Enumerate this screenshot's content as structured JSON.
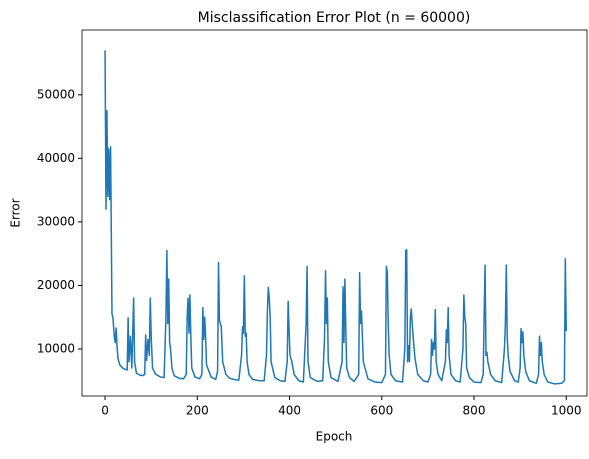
{
  "chart_data": {
    "type": "line",
    "title": "Misclassification Error Plot (n = 60000)",
    "xlabel": "Epoch",
    "ylabel": "Error",
    "color": "#1f77b4",
    "x": [
      0,
      2,
      4,
      6,
      8,
      10,
      12,
      15,
      17,
      20,
      22,
      24,
      26,
      28,
      32,
      38,
      44,
      48,
      50,
      52,
      55,
      58,
      62,
      64,
      68,
      75,
      82,
      86,
      88,
      90,
      93,
      96,
      98,
      100,
      103,
      110,
      120,
      128,
      132,
      134,
      136,
      138,
      140,
      142,
      145,
      150,
      160,
      170,
      176,
      178,
      180,
      182,
      184,
      186,
      188,
      195,
      205,
      210,
      212,
      214,
      216,
      218,
      220,
      230,
      240,
      244,
      246,
      248,
      250,
      252,
      255,
      262,
      270,
      280,
      290,
      296,
      298,
      300,
      302,
      304,
      306,
      308,
      312,
      320,
      335,
      345,
      350,
      352,
      354,
      356,
      358,
      360,
      368,
      380,
      390,
      395,
      397,
      399,
      401,
      405,
      410,
      420,
      430,
      436,
      438,
      440,
      445,
      460,
      472,
      476,
      478,
      480,
      482,
      484,
      490,
      505,
      514,
      516,
      518,
      520,
      522,
      524,
      530,
      540,
      550,
      552,
      554,
      556,
      558,
      560,
      570,
      585,
      600,
      608,
      610,
      612,
      614,
      616,
      620,
      630,
      645,
      650,
      652,
      654,
      656,
      658,
      660,
      662,
      664,
      666,
      668,
      672,
      678,
      690,
      700,
      706,
      708,
      710,
      712,
      714,
      716,
      718,
      722,
      730,
      738,
      740,
      742,
      744,
      746,
      750,
      760,
      770,
      776,
      778,
      780,
      782,
      784,
      790,
      800,
      815,
      820,
      822,
      824,
      826,
      828,
      830,
      836,
      846,
      860,
      866,
      868,
      870,
      872,
      874,
      878,
      888,
      896,
      900,
      902,
      904,
      906,
      908,
      912,
      920,
      935,
      940,
      942,
      944,
      946,
      948,
      952,
      960,
      975,
      990,
      996,
      998,
      1000
    ],
    "values": [
      57000,
      32000,
      47500,
      34000,
      41500,
      33500,
      41800,
      15500,
      15000,
      12000,
      11000,
      13300,
      10500,
      8500,
      7500,
      7000,
      6800,
      6700,
      14900,
      8000,
      12000,
      7000,
      18000,
      8000,
      6200,
      5900,
      5800,
      6000,
      12200,
      8200,
      11500,
      9000,
      18000,
      12000,
      7000,
      6000,
      5600,
      5500,
      15000,
      25500,
      14000,
      21000,
      11000,
      10000,
      7000,
      5800,
      5400,
      5300,
      6000,
      15000,
      18000,
      12500,
      18500,
      12000,
      7000,
      5600,
      5300,
      6000,
      16500,
      11500,
      15000,
      12000,
      7500,
      5600,
      5200,
      6500,
      23600,
      14500,
      14000,
      13500,
      8000,
      6000,
      5400,
      5200,
      5100,
      9000,
      13500,
      12500,
      21500,
      12000,
      12500,
      8000,
      6000,
      5200,
      5000,
      5000,
      9000,
      16000,
      19700,
      18000,
      15000,
      8000,
      5500,
      5000,
      4900,
      8000,
      17500,
      13000,
      9000,
      8000,
      6000,
      5000,
      4800,
      14000,
      23000,
      8000,
      5500,
      4900,
      5000,
      12000,
      22300,
      14000,
      18000,
      8000,
      5500,
      4900,
      8000,
      19800,
      11000,
      21000,
      13000,
      7000,
      5500,
      4900,
      6000,
      22000,
      14000,
      16000,
      12000,
      8000,
      5300,
      4800,
      4700,
      6000,
      23000,
      22000,
      14000,
      9000,
      6000,
      5000,
      4800,
      10000,
      25500,
      25600,
      8000,
      10500,
      8000,
      15000,
      16300,
      14000,
      12000,
      8500,
      6000,
      5000,
      4800,
      6000,
      11500,
      9000,
      11000,
      10000,
      16200,
      8000,
      6000,
      5000,
      8000,
      13000,
      11000,
      16500,
      9000,
      6000,
      5000,
      4800,
      10000,
      18500,
      15000,
      14000,
      7000,
      5500,
      4800,
      4700,
      6000,
      15500,
      23200,
      9000,
      9500,
      8000,
      6000,
      5000,
      4700,
      10000,
      14000,
      23200,
      12000,
      9000,
      6500,
      5000,
      4800,
      7000,
      13200,
      11000,
      12700,
      9000,
      6500,
      5000,
      4600,
      6000,
      12000,
      9000,
      11000,
      8000,
      6000,
      4800,
      4500,
      4600,
      5000,
      24200,
      12800
    ],
    "xlim": [
      -50,
      1045
    ],
    "ylim": [
      2600,
      60200
    ],
    "xticks": [
      0,
      200,
      400,
      600,
      800,
      1000
    ],
    "yticks": [
      10000,
      20000,
      30000,
      40000,
      50000
    ]
  }
}
